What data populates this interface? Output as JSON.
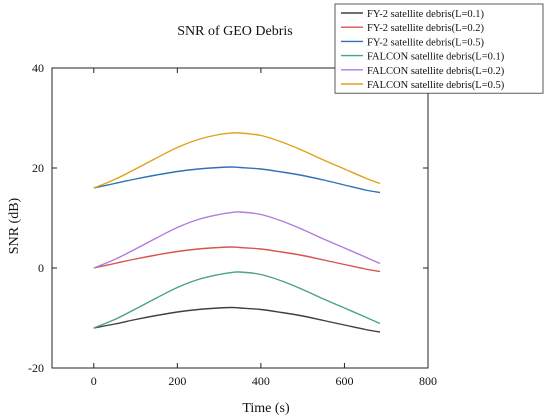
{
  "chart_data": {
    "type": "line",
    "title": "SNR of GEO Debris",
    "xlabel": "Time (s)",
    "ylabel": "SNR (dB)",
    "xlim": [
      -100,
      800
    ],
    "ylim": [
      -20,
      40
    ],
    "xticks": [
      0,
      200,
      400,
      600,
      800
    ],
    "yticks": [
      -20,
      0,
      20,
      40
    ],
    "grid": false,
    "legend_position": "top-right",
    "series": [
      {
        "name": "FY-2 satellite debris(L=0.1)",
        "color": "#404040",
        "x": [
          0,
          50,
          100,
          150,
          200,
          250,
          300,
          330,
          350,
          400,
          450,
          500,
          550,
          600,
          650,
          685
        ],
        "y": [
          -12.0,
          -11.2,
          -10.3,
          -9.5,
          -8.8,
          -8.3,
          -8.0,
          -7.9,
          -8.0,
          -8.3,
          -8.9,
          -9.6,
          -10.5,
          -11.4,
          -12.3,
          -12.8
        ]
      },
      {
        "name": "FY-2 satellite debris(L=0.2)",
        "color": "#d9534f",
        "x": [
          0,
          50,
          100,
          150,
          200,
          250,
          300,
          330,
          350,
          400,
          450,
          500,
          550,
          600,
          650,
          685
        ],
        "y": [
          0.0,
          0.9,
          1.8,
          2.6,
          3.3,
          3.8,
          4.1,
          4.2,
          4.1,
          3.8,
          3.2,
          2.5,
          1.6,
          0.7,
          -0.2,
          -0.7
        ]
      },
      {
        "name": "FY-2 satellite debris(L=0.5)",
        "color": "#2f72b8",
        "x": [
          0,
          50,
          100,
          150,
          200,
          250,
          300,
          330,
          350,
          400,
          450,
          500,
          550,
          600,
          650,
          685
        ],
        "y": [
          16.0,
          16.9,
          17.8,
          18.6,
          19.3,
          19.8,
          20.1,
          20.2,
          20.1,
          19.8,
          19.2,
          18.5,
          17.6,
          16.6,
          15.6,
          15.1
        ]
      },
      {
        "name": "FALCON satellite debris(L=0.1)",
        "color": "#4aa47c",
        "x": [
          0,
          50,
          100,
          150,
          200,
          250,
          300,
          330,
          350,
          400,
          450,
          500,
          550,
          600,
          650,
          685
        ],
        "y": [
          -12.0,
          -10.3,
          -8.2,
          -6.0,
          -3.9,
          -2.3,
          -1.3,
          -0.9,
          -0.8,
          -1.3,
          -2.6,
          -4.3,
          -6.2,
          -8.0,
          -9.8,
          -11.1
        ]
      },
      {
        "name": "FALCON satellite debris(L=0.2)",
        "color": "#b07ce0",
        "x": [
          0,
          50,
          100,
          150,
          200,
          250,
          300,
          330,
          350,
          400,
          450,
          500,
          550,
          600,
          650,
          685
        ],
        "y": [
          0.0,
          1.7,
          3.8,
          6.0,
          8.1,
          9.7,
          10.7,
          11.1,
          11.2,
          10.7,
          9.4,
          7.7,
          5.8,
          4.0,
          2.2,
          0.9
        ]
      },
      {
        "name": "FALCON satellite debris(L=0.5)",
        "color": "#e0a21a",
        "x": [
          0,
          50,
          100,
          150,
          200,
          250,
          300,
          330,
          350,
          400,
          450,
          500,
          550,
          600,
          650,
          685
        ],
        "y": [
          16.0,
          17.7,
          19.8,
          22.0,
          24.1,
          25.7,
          26.7,
          27.0,
          27.0,
          26.5,
          25.2,
          23.5,
          21.6,
          19.8,
          18.0,
          16.9
        ]
      }
    ]
  }
}
